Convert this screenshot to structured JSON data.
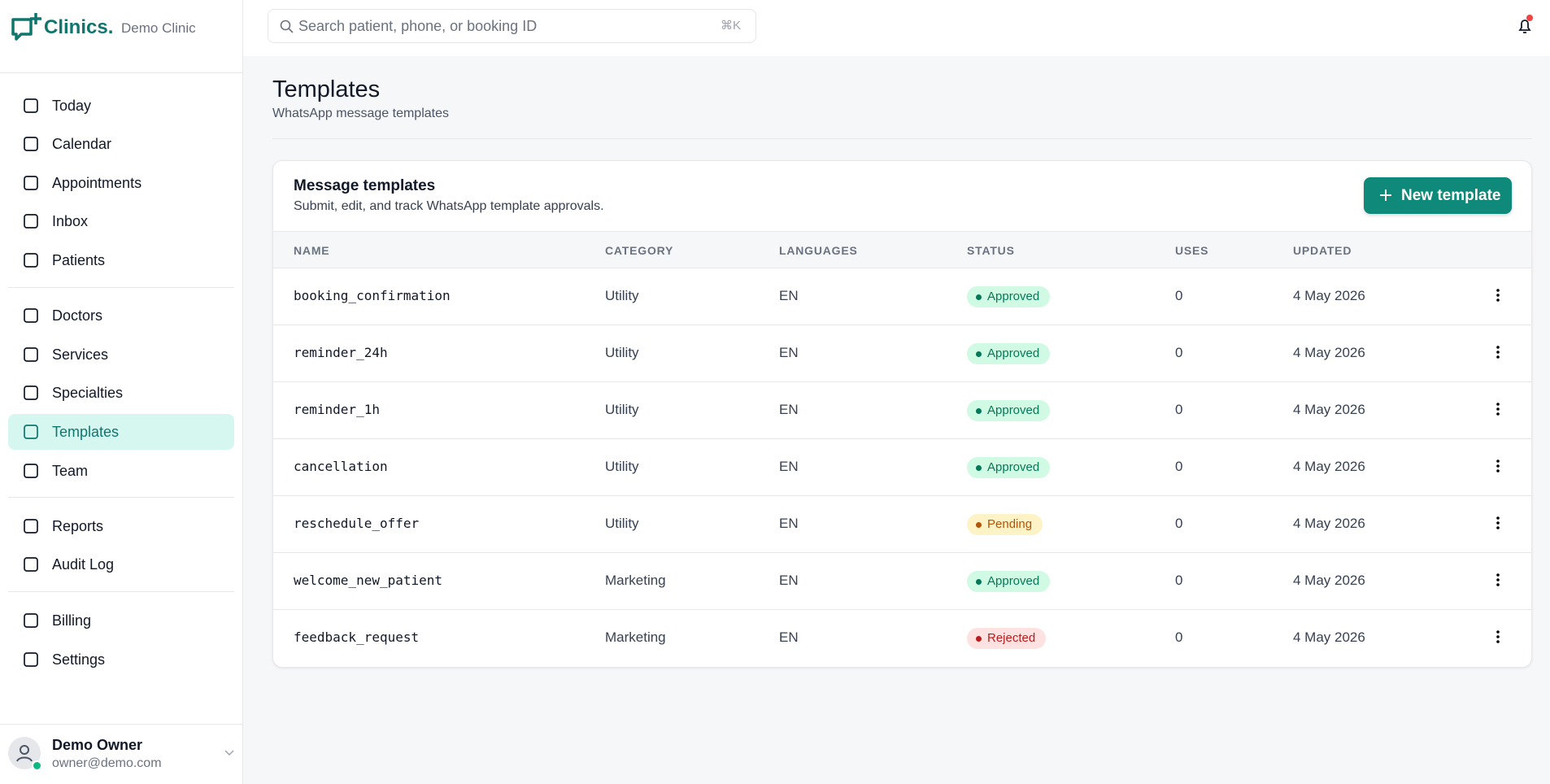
{
  "brand": {
    "logo": "Clinics.",
    "clinic": "Demo Clinic"
  },
  "search": {
    "placeholder": "Search patient, phone, or booking ID",
    "shortcut": "⌘K"
  },
  "nav": {
    "groups": [
      [
        "Today",
        "Calendar",
        "Appointments",
        "Inbox",
        "Patients"
      ],
      [
        "Doctors",
        "Services",
        "Specialties",
        "Templates",
        "Team"
      ],
      [
        "Reports",
        "Audit Log"
      ],
      [
        "Billing",
        "Settings"
      ]
    ]
  },
  "user": {
    "name": "Demo Owner",
    "email": "owner@demo.com"
  },
  "header": {
    "title": "Templates",
    "subtitle": "WhatsApp message templates"
  },
  "card": {
    "title": "Message templates",
    "subtitle": "Submit, edit, and track WhatsApp template approvals.",
    "button": "New template"
  },
  "table": {
    "columns": [
      "NAME",
      "CATEGORY",
      "LANGUAGES",
      "STATUS",
      "USES",
      "UPDATED"
    ],
    "rows": [
      [
        "booking_confirmation",
        "Utility",
        "EN",
        "Approved",
        "0",
        "4 May 2026"
      ],
      [
        "reminder_24h",
        "Utility",
        "EN",
        "Approved",
        "0",
        "4 May 2026"
      ],
      [
        "reminder_1h",
        "Utility",
        "EN",
        "Approved",
        "0",
        "4 May 2026"
      ],
      [
        "cancellation",
        "Utility",
        "EN",
        "Approved",
        "0",
        "4 May 2026"
      ],
      [
        "reschedule_offer",
        "Utility",
        "EN",
        "Pending",
        "0",
        "4 May 2026"
      ],
      [
        "welcome_new_patient",
        "Marketing",
        "EN",
        "Approved",
        "0",
        "4 May 2026"
      ],
      [
        "feedback_request",
        "Marketing",
        "EN",
        "Rejected",
        "0",
        "4 May 2026"
      ]
    ]
  }
}
